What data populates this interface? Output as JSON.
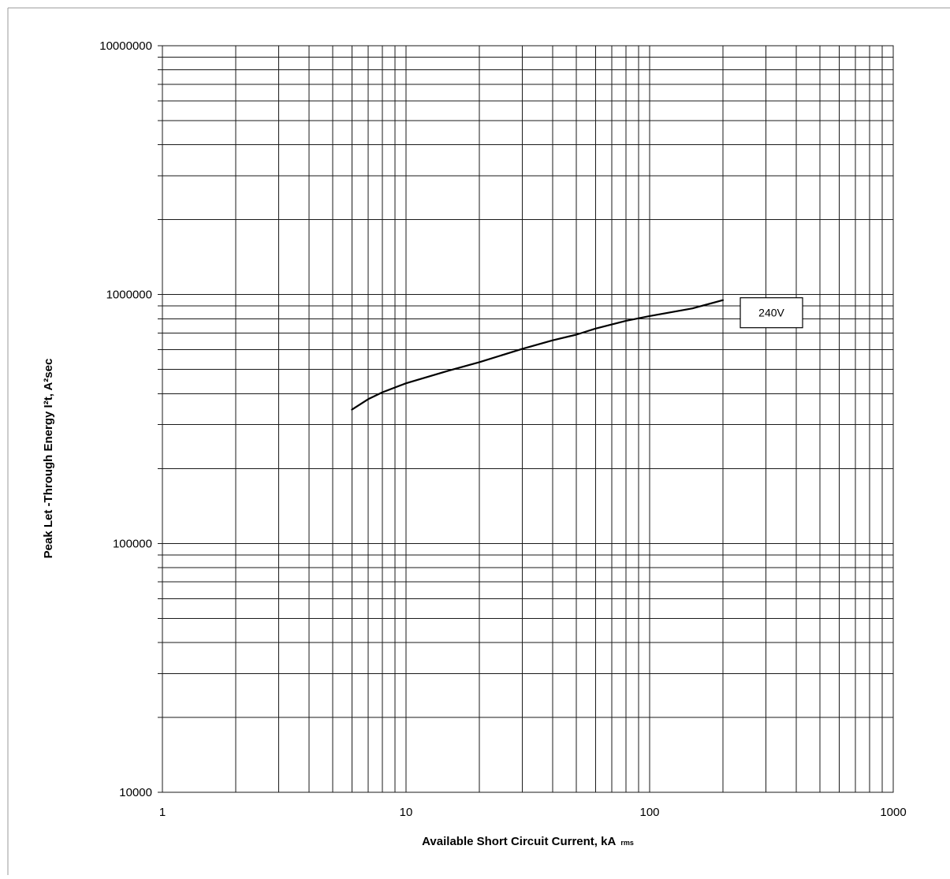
{
  "chart_data": {
    "type": "line",
    "title": "",
    "xlabel": "Available Short Circuit Current, kA",
    "xlabel_sub": "rms",
    "ylabel": "Peak Let -Through Energy I²t, A²sec",
    "x_scale": "log",
    "y_scale": "log",
    "xlim": [
      1,
      1000
    ],
    "ylim": [
      10000,
      10000000
    ],
    "x_ticks": [
      "1",
      "10",
      "100",
      "1000"
    ],
    "y_ticks": [
      "10000",
      "100000",
      "1000000",
      "10000000"
    ],
    "grid": true,
    "series": [
      {
        "name": "240V",
        "x": [
          6,
          7,
          8,
          10,
          15,
          20,
          30,
          40,
          50,
          60,
          80,
          100,
          150,
          200
        ],
        "y": [
          345000,
          380000,
          405000,
          440000,
          495000,
          535000,
          605000,
          655000,
          690000,
          730000,
          785000,
          820000,
          880000,
          950000
        ]
      }
    ]
  }
}
